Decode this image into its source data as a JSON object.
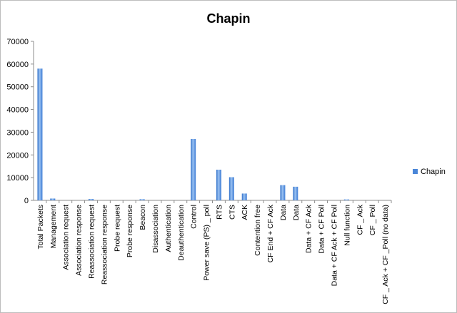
{
  "chart_data": {
    "type": "bar",
    "title": "Chapin",
    "xlabel": "",
    "ylabel": "",
    "ylim": [
      0,
      70000
    ],
    "yticks": [
      "0",
      "10000",
      "20000",
      "30000",
      "40000",
      "50000",
      "60000",
      "70000"
    ],
    "grid": false,
    "legend_position": "right",
    "bar_color": "#4a86d8",
    "categories": [
      "Total Packets",
      "Management",
      "Association request",
      "Association response",
      "Reassociation request",
      "Reassociation response",
      "Probe request",
      "Probe response",
      "Beacon",
      "Disassociation",
      "Authentication",
      "Deauthentication",
      "Control",
      "Power save (PS) _ poll",
      "RTS",
      "CTS",
      "ACK",
      "Contention free",
      "CF End + CF Ack",
      "Data",
      "Data",
      "Data + CF Ack",
      "Data + CF Poll",
      "Data + CF Ack + CF Poll",
      "Null function",
      "CF _ Ack",
      "CF _ Poll",
      "CF _ Ack + CF _Poll (no data)"
    ],
    "series": [
      {
        "name": "Chapin",
        "values": [
          58000,
          800,
          0,
          0,
          600,
          0,
          0,
          0,
          500,
          0,
          0,
          0,
          27000,
          0,
          13500,
          10200,
          3000,
          0,
          0,
          6700,
          6000,
          0,
          0,
          0,
          400,
          0,
          0,
          0
        ]
      }
    ]
  }
}
